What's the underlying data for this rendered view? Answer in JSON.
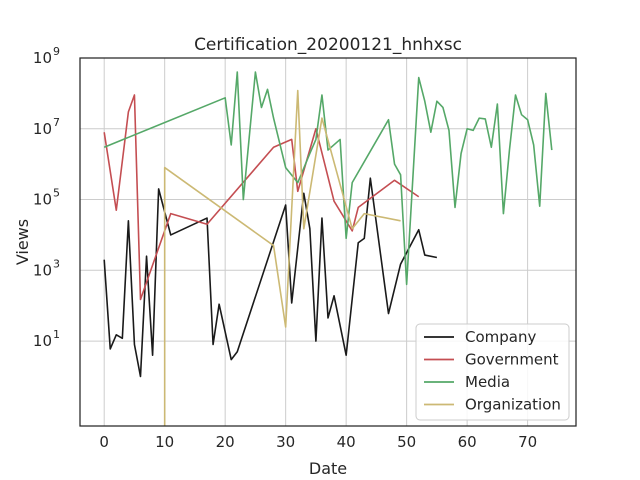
{
  "chart_data": {
    "type": "line",
    "title": "Certification_20200121_hnhxsc",
    "xlabel": "Date",
    "ylabel": "Views",
    "xlim": [
      -4,
      78
    ],
    "ylim_log10": [
      -1.4,
      9
    ],
    "yscale": "log",
    "x_ticks": [
      0,
      10,
      20,
      30,
      40,
      50,
      60,
      70
    ],
    "x_tick_labels": [
      "0",
      "10",
      "20",
      "30",
      "40",
      "50",
      "60",
      "70"
    ],
    "y_ticks_log10": [
      1,
      3,
      5,
      7,
      9
    ],
    "y_tick_labels": [
      "10",
      "10",
      "10",
      "10",
      "10"
    ],
    "y_tick_exponents": [
      "1",
      "3",
      "5",
      "7",
      "9"
    ],
    "grid": true,
    "legend_position": "lower-right",
    "series": [
      {
        "name": "Company",
        "color": "#1a1a1a",
        "x": [
          0,
          1,
          2,
          3,
          4,
          5,
          6,
          7,
          8,
          9,
          11,
          17,
          18,
          19,
          21,
          22,
          30,
          31,
          33,
          34,
          35,
          36,
          37,
          38,
          40,
          42,
          43,
          44,
          47,
          49,
          52,
          53,
          55
        ],
        "y": [
          2000,
          6,
          15,
          12,
          25000,
          8,
          1,
          2500,
          4,
          200000,
          10000,
          30000,
          8,
          110,
          3,
          5,
          70000,
          120,
          150000,
          15000,
          10,
          30000,
          45,
          190,
          4,
          6000,
          8000,
          400000,
          60,
          1500,
          14000,
          2700,
          2300
        ]
      },
      {
        "name": "Government",
        "color": "#c44e52",
        "x": [
          0,
          2,
          4,
          5,
          6,
          11,
          17,
          28,
          31,
          32,
          35,
          38,
          41,
          42,
          48,
          52
        ],
        "y": [
          8000000,
          50000,
          30000000,
          90000000,
          150,
          40000,
          20000,
          3000000,
          5000000,
          170000,
          10000000,
          90000,
          13000,
          60000,
          350000,
          120000
        ]
      },
      {
        "name": "Media",
        "color": "#55a868",
        "x": [
          0,
          20,
          21,
          22,
          23,
          25,
          26,
          27,
          28,
          30,
          32,
          34,
          35,
          36,
          37,
          39,
          40,
          41,
          47,
          48,
          49,
          50,
          52,
          53,
          54,
          55,
          56,
          57,
          58,
          59,
          60,
          61,
          62,
          63,
          64,
          65,
          66,
          67,
          68,
          69,
          70,
          71,
          72,
          73,
          74
        ],
        "y": [
          3000000,
          75000000,
          3500000,
          400000000,
          100000,
          400000000,
          40000000,
          130000000,
          20000000,
          800000,
          300000,
          2000000,
          5000000,
          90000000,
          2500000,
          5000000,
          8000,
          300000,
          18000000,
          1000000,
          500000,
          400,
          280000000,
          60000000,
          8000000,
          60000000,
          40000000,
          9000000,
          60000,
          2000000,
          10000000,
          9000000,
          20000000,
          19000000,
          3000000,
          50000000,
          40000,
          2500000,
          90000000,
          25000000,
          18000000,
          3500000,
          65000,
          100000000,
          2500000
        ]
      },
      {
        "name": "Organization",
        "color": "#ccb974",
        "x": [
          10,
          10,
          28,
          30,
          32,
          33,
          36,
          41,
          43,
          49
        ],
        "y": [
          0.04,
          800000,
          5000,
          25,
          120000000,
          15000,
          20000000,
          15000,
          40000,
          25000
        ]
      }
    ]
  }
}
